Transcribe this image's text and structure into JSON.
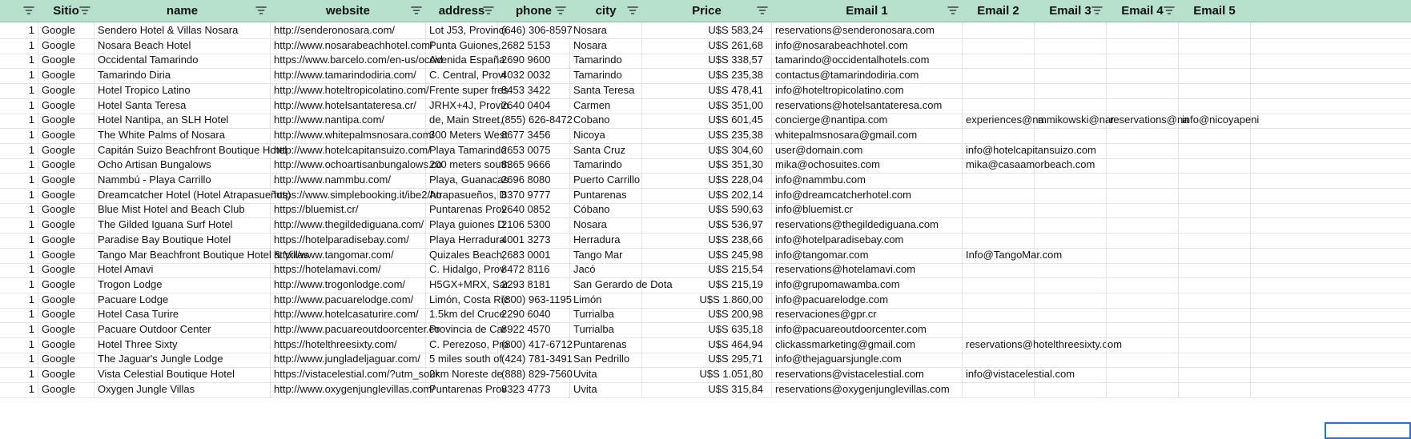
{
  "columns": [
    {
      "label": "",
      "filter": true
    },
    {
      "label": "Sitio",
      "filter": true
    },
    {
      "label": "name",
      "filter": true
    },
    {
      "label": "website",
      "filter": true
    },
    {
      "label": "address",
      "filter": true
    },
    {
      "label": "phone",
      "filter": true
    },
    {
      "label": "city",
      "filter": true
    },
    {
      "label": "Price",
      "filter": true
    },
    {
      "label": "Email 1",
      "filter": true
    },
    {
      "label": "Email 2",
      "filter": false
    },
    {
      "label": "Email 3",
      "filter": true
    },
    {
      "label": "Email 4",
      "filter": true
    },
    {
      "label": "Email 5",
      "filter": false
    }
  ],
  "rows": [
    [
      "1",
      "Google",
      "Sendero Hotel & Villas Nosara",
      "http://senderonosara.com/",
      "Lot J53, Provinci",
      "(646) 306-8597",
      "Nosara",
      "U$S 583,24",
      "reservations@senderonosara.com",
      "",
      "",
      "",
      ""
    ],
    [
      "1",
      "Google",
      "Nosara Beach Hotel",
      "http://www.nosarabeachhotel.com/",
      "Punta Guiones, ",
      "2682 5153",
      "Nosara",
      "U$S 261,68",
      "info@nosarabeachhotel.com",
      "",
      "",
      "",
      ""
    ],
    [
      "1",
      "Google",
      "Occidental Tamarindo",
      "https://www.barcelo.com/en-us/occid",
      "Avenida España",
      "2690 9600",
      "Tamarindo",
      "U$S 338,57",
      "tamarindo@occidentalhotels.com",
      "",
      "",
      "",
      ""
    ],
    [
      "1",
      "Google",
      "Tamarindo Diria",
      "http://www.tamarindodiria.com/",
      "C. Central, Provi",
      "4032 0032",
      "Tamarindo",
      "U$S 235,38",
      "contactus@tamarindodiria.com",
      "",
      "",
      "",
      ""
    ],
    [
      "1",
      "Google",
      "Hotel Tropico Latino",
      "http://www.hoteltropicolatino.com/",
      "Frente super fres",
      "8453 3422",
      "Santa Teresa",
      "U$S 478,41",
      "info@hoteltropicolatino.com",
      "",
      "",
      "",
      ""
    ],
    [
      "1",
      "Google",
      "Hotel Santa Teresa",
      "http://www.hotelsantateresa.cr/",
      "JRHX+4J, Provin",
      "2640 0404",
      "Carmen",
      "U$S 351,00",
      "reservations@hotelsantateresa.com",
      "",
      "",
      "",
      ""
    ],
    [
      "1",
      "Google",
      "Hotel Nantipa, an SLH Hotel",
      "http://www.nantipa.com/",
      "de, Main Street, ",
      "(855) 626-8472",
      "Cobano",
      "U$S 601,45",
      "concierge@nantipa.com",
      "experiences@na",
      "mmikowski@nar",
      "reservations@na",
      "info@nicoyapeni"
    ],
    [
      "1",
      "Google",
      "The White Palms of Nosara",
      "http://www.whitepalmsnosara.com/",
      "300 Meters West",
      "8677 3456",
      "Nicoya",
      "U$S 235,38",
      "whitepalmsnosara@gmail.com",
      "",
      "",
      "",
      ""
    ],
    [
      "1",
      "Google",
      "Capitán Suizo Beachfront Boutique Hotel",
      "http://www.hotelcapitansuizo.com/",
      "Playa Tamarindo",
      "2653 0075",
      "Santa Cruz",
      "U$S 304,60",
      "user@domain.com",
      "info@hotelcapitansuizo.com",
      "",
      "",
      ""
    ],
    [
      "1",
      "Google",
      "Ocho Artisan Bungalows",
      "http://www.ochoartisanbungalows.co",
      "200 meters south",
      "8365 9666",
      "Tamarindo",
      "U$S 351,30",
      "mika@ochosuites.com",
      "mika@casaamorbeach.com",
      "",
      "",
      ""
    ],
    [
      "1",
      "Google",
      "Nammbú - Playa Carrillo",
      "http://www.nammbu.com/",
      "Playa, Guanacas",
      "2696 8080",
      "Puerto Carrillo",
      "U$S 228,04",
      "info@nammbu.com",
      "",
      "",
      "",
      ""
    ],
    [
      "1",
      "Google",
      "Dreamcatcher Hotel (Hotel Atrapasueños)",
      "https://www.simplebooking.it/ibe2/ho",
      "Atrapasueños, D",
      "8370 9777",
      "Puntarenas",
      "U$S 202,14",
      "info@dreamcatcherhotel.com",
      "",
      "",
      "",
      ""
    ],
    [
      "1",
      "Google",
      "Blue Mist Hotel and Beach Club",
      "https://bluemist.cr/",
      "Puntarenas Prov",
      "2640 0852",
      "Cóbano",
      "U$S 590,63",
      "info@bluemist.cr",
      "",
      "",
      "",
      ""
    ],
    [
      "1",
      "Google",
      "The Gilded Iguana Surf Hotel",
      "http://www.thegildediguana.com/",
      "Playa guiones D",
      "2106 5300",
      "Nosara",
      "U$S 536,97",
      "reservations@thegildediguana.com",
      "",
      "",
      "",
      ""
    ],
    [
      "1",
      "Google",
      "Paradise Bay Boutique Hotel",
      "https://hotelparadisebay.com/",
      "Playa Herradura",
      "4001 3273",
      "Herradura",
      "U$S 238,66",
      "info@hotelparadisebay.com",
      "",
      "",
      "",
      ""
    ],
    [
      "1",
      "Google",
      "Tango Mar Beachfront Boutique Hotel & Villas",
      "http://www.tangomar.com/",
      "Quizales Beach, ",
      "2683 0001",
      "Tango Mar",
      "U$S 245,98",
      "info@tangomar.com",
      "Info@TangoMar.com",
      "",
      "",
      ""
    ],
    [
      "1",
      "Google",
      "Hotel Amavi",
      "https://hotelamavi.com/",
      "C. Hidalgo, Prov",
      "8472 8116",
      "Jacó",
      "U$S 215,54",
      "reservations@hotelamavi.com",
      "",
      "",
      "",
      ""
    ],
    [
      "1",
      "Google",
      "Trogon Lodge",
      "http://www.trogonlodge.com/",
      "H5GX+MRX, Sar",
      "2293 8181",
      "San Gerardo de Dota",
      "U$S 215,19",
      "info@grupomawamba.com",
      "",
      "",
      "",
      ""
    ],
    [
      "1",
      "Google",
      "Pacuare Lodge",
      "http://www.pacuarelodge.com/",
      "Limón, Costa Ric",
      "(800) 963-1195",
      "Limón",
      "U$S 1.860,00",
      "info@pacuarelodge.com",
      "",
      "",
      "",
      ""
    ],
    [
      "1",
      "Google",
      "Hotel Casa Turire",
      "http://www.hotelcasaturire.com/",
      "1.5km del Cruce",
      "2290 6040",
      "Turrialba",
      "U$S 200,98",
      "reservaciones@gpr.cr",
      "",
      "",
      "",
      ""
    ],
    [
      "1",
      "Google",
      "Pacuare Outdoor Center",
      "http://www.pacuareoutdoorcenter.co",
      "Provincia de Car",
      "8922 4570",
      "Turrialba",
      "U$S 635,18",
      "info@pacuareoutdoorcenter.com",
      "",
      "",
      "",
      ""
    ],
    [
      "1",
      "Google",
      "Hotel Three Sixty",
      "https://hotelthreesixty.com/",
      "C. Perezoso, Pro",
      "(800) 417-6712",
      "Puntarenas",
      "U$S 464,94",
      "clickassmarketing@gmail.com",
      "reservations@hotelthreesixty.com",
      "",
      "",
      ""
    ],
    [
      "1",
      "Google",
      "The Jaguar's Jungle Lodge",
      "http://www.jungladeljaguar.com/",
      "5 miles south of",
      "(424) 781-3491",
      "San Pedrillo",
      "U$S 295,71",
      "info@thejaguarsjungle.com",
      "",
      "",
      "",
      ""
    ],
    [
      "1",
      "Google",
      "Vista Celestial Boutique Hotel",
      "https://vistacelestial.com/?utm_sour",
      "2km Noreste de ",
      "(888) 829-7560",
      "Uvita",
      "U$S 1.051,80",
      "reservations@vistacelestial.com",
      "info@vistacelestial.com",
      "",
      "",
      ""
    ],
    [
      "1",
      "Google",
      "Oxygen Jungle Villas",
      "http://www.oxygenjunglevillas.com/",
      "Puntarenas Prov",
      "8323 4773",
      "Uvita",
      "U$S 315,84",
      "reservations@oxygenjunglevillas.com",
      "",
      "",
      "",
      ""
    ]
  ],
  "colors": {
    "header_bg": "#b7e1cd",
    "grid_line": "#e2e3e3",
    "selection": "#1a73e8"
  }
}
